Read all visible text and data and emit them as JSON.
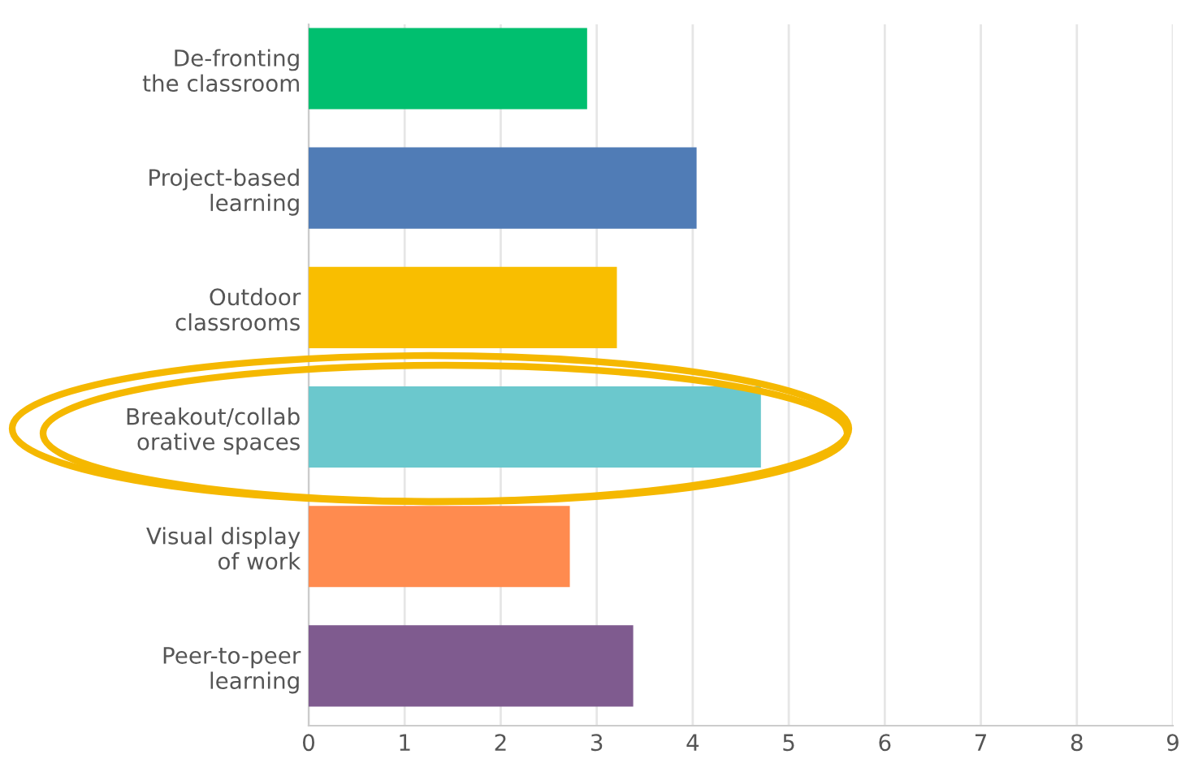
{
  "chart_data": {
    "type": "bar",
    "orientation": "horizontal",
    "categories": [
      "De-fronting\nthe classroom",
      "Project-based\nlearning",
      "Outdoor\nclassrooms",
      "Breakout/collab\norative spaces",
      "Visual display\nof work",
      "Peer-to-peer\nlearning"
    ],
    "values": [
      2.9,
      4.04,
      3.21,
      4.71,
      2.72,
      3.38
    ],
    "colors": [
      "#00bf6f",
      "#507cb6",
      "#f9be00",
      "#6bc8cd",
      "#ff8b4f",
      "#7f5b8f"
    ],
    "xlim": [
      0,
      9
    ],
    "xticks": [
      0,
      1,
      2,
      3,
      4,
      5,
      6,
      7,
      8,
      9
    ],
    "grid": "x"
  }
}
